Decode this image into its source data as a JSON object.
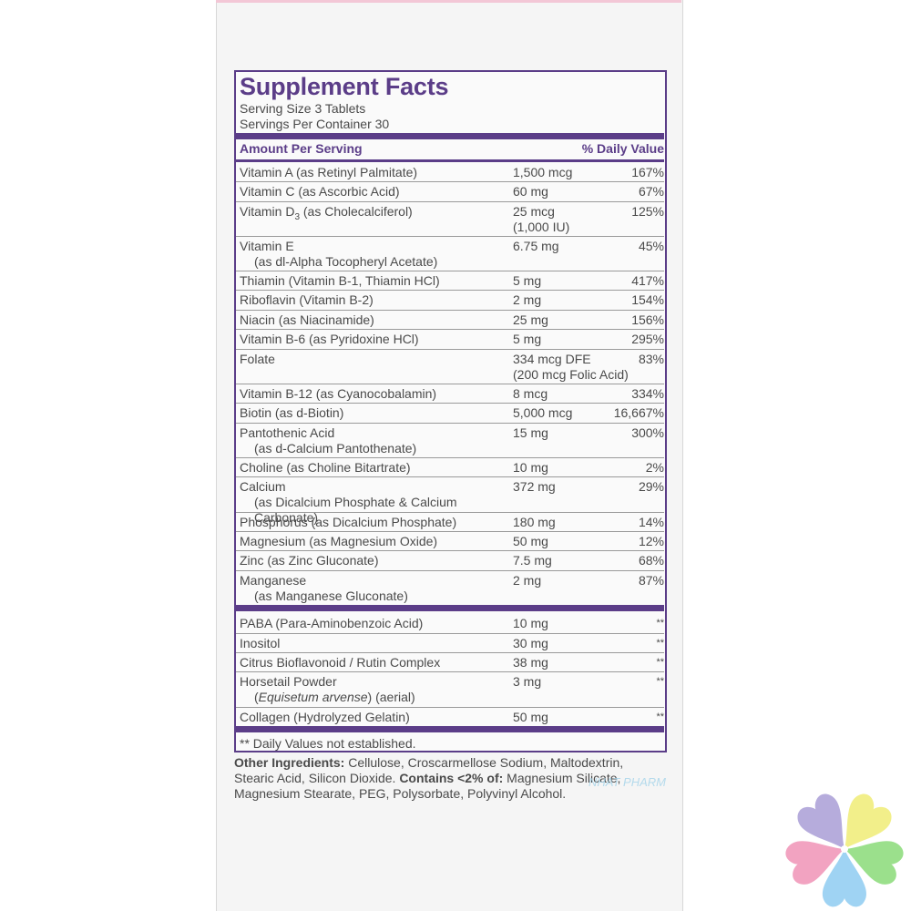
{
  "title": "Supplement Facts",
  "serving_size": "Serving Size 3 Tablets",
  "servings_per_container": "Servings Per Container 30",
  "header": {
    "amount": "Amount Per Serving",
    "dv": "% Daily Value"
  },
  "rows": [
    {
      "name": "Vitamin A (as Retinyl Palmitate)",
      "sub": "",
      "amount": "1,500 mcg",
      "amount2": "",
      "dv": "167%"
    },
    {
      "name": "Vitamin C (as Ascorbic Acid)",
      "sub": "",
      "amount": "60 mg",
      "amount2": "",
      "dv": "67%"
    },
    {
      "name": "Vitamin D",
      "sub": "",
      "amount": "25 mcg",
      "amount2": "(1,000 IU)",
      "dv": "125%"
    },
    {
      "name": "Vitamin E",
      "sub": "(as dl-Alpha Tocopheryl Acetate)",
      "amount": "6.75 mg",
      "amount2": "",
      "dv": "45%"
    },
    {
      "name": "Thiamin (Vitamin B-1, Thiamin HCl)",
      "sub": "",
      "amount": "5 mg",
      "amount2": "",
      "dv": "417%"
    },
    {
      "name": "Riboflavin (Vitamin B-2)",
      "sub": "",
      "amount": "2 mg",
      "amount2": "",
      "dv": "154%"
    },
    {
      "name": "Niacin (as Niacinamide)",
      "sub": "",
      "amount": "25 mg",
      "amount2": "",
      "dv": "156%"
    },
    {
      "name": "Vitamin B-6 (as Pyridoxine HCl)",
      "sub": "",
      "amount": "5 mg",
      "amount2": "",
      "dv": "295%"
    },
    {
      "name": "Folate",
      "sub": "",
      "amount": "334 mcg DFE",
      "amount2": "(200 mcg Folic Acid)",
      "dv": "83%"
    },
    {
      "name": "Vitamin B-12 (as Cyanocobalamin)",
      "sub": "",
      "amount": "8 mcg",
      "amount2": "",
      "dv": "334%"
    },
    {
      "name": "Biotin (as d-Biotin)",
      "sub": "",
      "amount": "5,000 mcg",
      "amount2": "",
      "dv": "16,667%"
    },
    {
      "name": "Pantothenic Acid",
      "sub": "(as d-Calcium Pantothenate)",
      "amount": "15 mg",
      "amount2": "",
      "dv": "300%"
    },
    {
      "name": "Choline (as Choline Bitartrate)",
      "sub": "",
      "amount": "10 mg",
      "amount2": "",
      "dv": "2%"
    },
    {
      "name": "Calcium",
      "sub": "(as Dicalcium Phosphate & Calcium Carbonate)",
      "amount": "372 mg",
      "amount2": "",
      "dv": "29%"
    },
    {
      "name": "Phosphorus (as Dicalcium Phosphate)",
      "sub": "",
      "amount": "180 mg",
      "amount2": "",
      "dv": "14%"
    },
    {
      "name": "Magnesium (as Magnesium Oxide)",
      "sub": "",
      "amount": "50 mg",
      "amount2": "",
      "dv": "12%"
    },
    {
      "name": "Zinc (as Zinc Gluconate)",
      "sub": "",
      "amount": "7.5 mg",
      "amount2": "",
      "dv": "68%"
    },
    {
      "name": "Manganese",
      "sub": "(as Manganese Gluconate)",
      "amount": "2 mg",
      "amount2": "",
      "dv": "87%"
    }
  ],
  "vitd_subscript": "3",
  "vitd_rest": " (as Cholecalciferol)",
  "rows2": [
    {
      "name": "PABA (Para-Aminobenzoic Acid)",
      "sub": "",
      "amount": "10 mg",
      "dv": "**"
    },
    {
      "name": "Inositol",
      "sub": "",
      "amount": "30 mg",
      "dv": "**"
    },
    {
      "name": "Citrus Bioflavonoid / Rutin Complex",
      "sub": "",
      "amount": "38 mg",
      "dv": "**"
    },
    {
      "name": "Horsetail Powder",
      "sub": "(aerial)",
      "sub_italic": "Equisetum arvense",
      "amount": "3 mg",
      "dv": "**"
    },
    {
      "name": "Collagen (Hydrolyzed Gelatin)",
      "sub": "",
      "amount": "50 mg",
      "dv": "**"
    }
  ],
  "footnote": "** Daily Values not established.",
  "ingredients": {
    "label1": "Other Ingredients:",
    "text1": " Cellulose, Croscarmellose Sodium, Maltodextrin, Stearic Acid, Silicon Dioxide. ",
    "label2": "Contains <2% of:",
    "text2": " Magnesium Silicate, Magnesium Stearate, PEG, Polysorbate, Polyvinyl Alcohol."
  },
  "watermark": "NHAT PHARM",
  "colors": {
    "accent": "#5b3d88",
    "text": "#4a4a4a"
  }
}
